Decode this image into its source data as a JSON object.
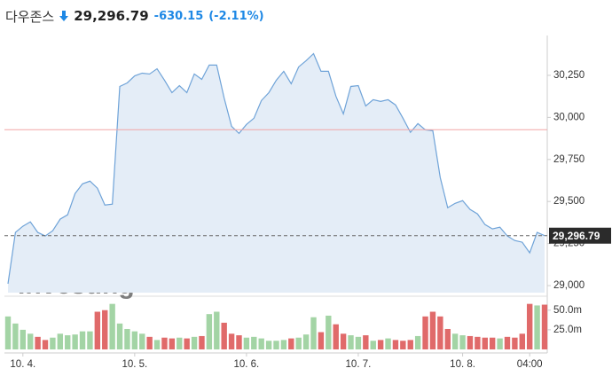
{
  "header": {
    "name": "다우존스",
    "change": "-630.15",
    "change_pct": "(-2.11%)"
  },
  "chart_data": {
    "type": "line",
    "price": {
      "value": 29296.79,
      "label": "29,296.79"
    },
    "previous_close": 29926.94,
    "watermark": [
      "Investing",
      ".com"
    ],
    "xlim": [
      0,
      72
    ],
    "xticks": [
      {
        "value": 2,
        "label": "10. 4."
      },
      {
        "value": 17,
        "label": "10. 5."
      },
      {
        "value": 32,
        "label": "10. 6."
      },
      {
        "value": 47,
        "label": "10. 7."
      },
      {
        "value": 61,
        "label": "10. 8."
      },
      {
        "value": 70,
        "label": "04:00"
      }
    ],
    "ylim": [
      28958,
      30487
    ],
    "yticks": [
      {
        "value": 29000,
        "label": "29,000"
      },
      {
        "value": 29250,
        "label": "29,250"
      },
      {
        "value": 29500,
        "label": "29,500"
      },
      {
        "value": 29750,
        "label": "29,750"
      },
      {
        "value": 30000,
        "label": "30,000"
      },
      {
        "value": 30250,
        "label": "30,250"
      }
    ],
    "color": "#6fa3d8",
    "fill": "#e4edf7",
    "values": [
      29011,
      29316,
      29353,
      29379,
      29316,
      29295,
      29326,
      29395,
      29421,
      29547,
      29605,
      29621,
      29579,
      29479,
      29484,
      30184,
      30205,
      30247,
      30263,
      30258,
      30289,
      30221,
      30147,
      30189,
      30147,
      30258,
      30226,
      30311,
      30311,
      30116,
      29947,
      29905,
      29958,
      29995,
      30100,
      30147,
      30221,
      30274,
      30200,
      30300,
      30337,
      30379,
      30274,
      30274,
      30126,
      30021,
      30184,
      30189,
      30068,
      30105,
      30095,
      30105,
      30074,
      29995,
      29911,
      29963,
      29926,
      29921,
      29642,
      29463,
      29489,
      29505,
      29453,
      29426,
      29363,
      29337,
      29347,
      29295,
      29268,
      29258,
      29195,
      29316,
      29297
    ],
    "volume": {
      "type": "bar",
      "values": [
        42,
        33,
        25,
        20,
        16,
        12,
        15,
        20,
        18,
        19,
        23,
        23,
        48,
        50,
        58,
        33,
        26,
        23,
        20,
        16,
        12,
        15,
        14,
        15,
        14,
        16,
        17,
        45,
        48,
        34,
        20,
        18,
        15,
        16,
        14,
        11,
        11,
        12,
        14,
        15,
        19,
        41,
        22,
        43,
        32,
        20,
        18,
        16,
        18,
        11,
        12,
        14,
        12,
        11,
        12,
        17,
        42,
        48,
        42,
        26,
        20,
        18,
        17,
        16,
        15,
        15,
        14,
        16,
        15,
        20,
        58,
        56,
        57
      ],
      "ylim": [
        0,
        61
      ],
      "yticks": [
        {
          "value": 25,
          "label": "25.0m"
        },
        {
          "value": 50,
          "label": "50.0m"
        }
      ],
      "up_color": "#a3d4a5",
      "down_color": "#e06a6a"
    }
  }
}
